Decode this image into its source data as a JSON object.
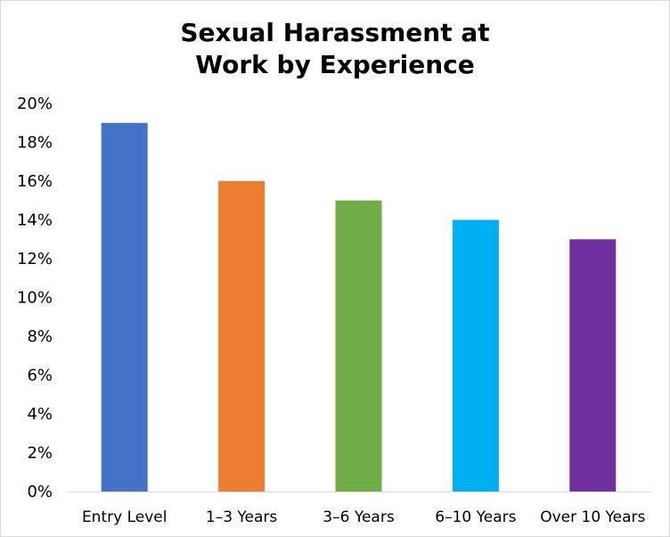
{
  "chart_data": {
    "type": "bar",
    "title_lines": [
      "Sexual Harassment at",
      "Work by Experience"
    ],
    "categories": [
      "Entry Level",
      "1–3 Years",
      "3–6 Years",
      "6–10 Years",
      "Over 10 Years"
    ],
    "values": [
      19,
      16,
      15,
      14,
      13
    ],
    "colors": [
      "#4472c4",
      "#ed7d31",
      "#70ad47",
      "#00b0f0",
      "#7030a0"
    ],
    "ylim": [
      0,
      20
    ],
    "ytick_step": 2,
    "ytick_labels": [
      "0%",
      "2%",
      "4%",
      "6%",
      "8%",
      "10%",
      "12%",
      "14%",
      "16%",
      "18%",
      "20%"
    ],
    "grid": false,
    "legend": "none"
  }
}
